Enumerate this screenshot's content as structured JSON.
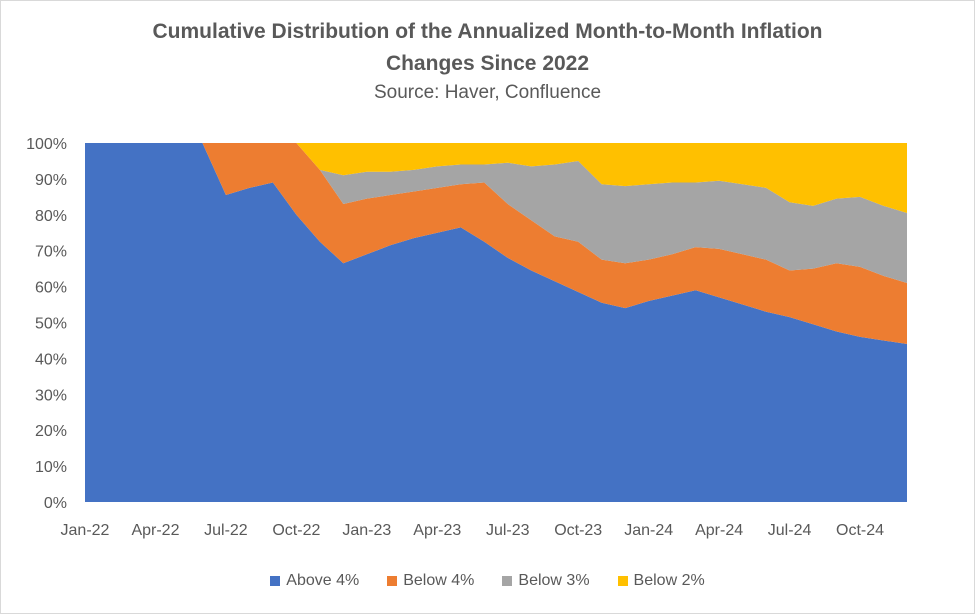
{
  "title_line1": "Cumulative Distribution of  the Annualized Month-to-Month Inflation",
  "title_line2": "Changes Since 2022",
  "subtitle": "Source: Haver, Confluence",
  "chart_data": {
    "type": "area",
    "stacked": true,
    "x": [
      "Jan-22",
      "Feb-22",
      "Mar-22",
      "Apr-22",
      "May-22",
      "Jun-22",
      "Jul-22",
      "Aug-22",
      "Sep-22",
      "Oct-22",
      "Nov-22",
      "Dec-22",
      "Jan-23",
      "Feb-23",
      "Mar-23",
      "Apr-23",
      "May-23",
      "Jun-23",
      "Jul-23",
      "Aug-23",
      "Sep-23",
      "Oct-23",
      "Nov-23",
      "Dec-23",
      "Jan-24",
      "Feb-24",
      "Mar-24",
      "Apr-24",
      "May-24",
      "Jun-24",
      "Jul-24",
      "Aug-24",
      "Sep-24",
      "Oct-24",
      "Nov-24",
      "Dec-24"
    ],
    "x_tick_labels": [
      "Jan-22",
      "Apr-22",
      "Jul-22",
      "Oct-22",
      "Jan-23",
      "Apr-23",
      "Jul-23",
      "Oct-23",
      "Jan-24",
      "Apr-24",
      "Jul-24",
      "Oct-24"
    ],
    "y_ticks": [
      "0%",
      "10%",
      "20%",
      "30%",
      "40%",
      "50%",
      "60%",
      "70%",
      "80%",
      "90%",
      "100%"
    ],
    "ylim": [
      0,
      100
    ],
    "legend_position": "bottom",
    "series": [
      {
        "name": "Above 4%",
        "color": "#4472c4",
        "values": [
          100,
          100,
          100,
          100,
          100,
          100,
          85.5,
          87.5,
          89,
          80,
          72.5,
          66.5,
          69,
          71.5,
          73.5,
          75,
          76.5,
          72.5,
          68,
          64.5,
          61.5,
          58.5,
          55.5,
          54,
          56,
          57.5,
          59,
          57,
          55,
          53,
          51.5,
          49.5,
          47.5,
          46,
          45,
          44
        ]
      },
      {
        "name": "Below 4%",
        "color": "#ed7d31",
        "values": [
          0,
          0,
          0,
          0,
          0,
          0,
          14.5,
          12.5,
          11,
          20,
          20,
          16.5,
          15.5,
          14,
          13,
          12.5,
          12,
          16.5,
          15,
          14,
          12.5,
          14,
          12,
          12.5,
          11.5,
          11.5,
          12,
          13.5,
          14,
          14.5,
          13,
          15.5,
          19,
          19.5,
          18,
          17
        ]
      },
      {
        "name": "Below 3%",
        "color": "#a5a5a5",
        "values": [
          0,
          0,
          0,
          0,
          0,
          0,
          0,
          0,
          0,
          0,
          0,
          8,
          7.5,
          6.5,
          6,
          6,
          5.5,
          5,
          11.5,
          15,
          20,
          22.5,
          21,
          21.5,
          21,
          20,
          18,
          19,
          19.5,
          20,
          19,
          17.5,
          18,
          19.5,
          19.5,
          19.5
        ]
      },
      {
        "name": "Below 2%",
        "color": "#ffc000",
        "values": [
          0,
          0,
          0,
          0,
          0,
          0,
          0,
          0,
          0,
          0,
          7.5,
          9,
          8,
          8,
          7.5,
          6.5,
          6,
          6,
          5.5,
          6.5,
          6,
          5,
          11.5,
          12,
          11.5,
          11,
          11,
          10.5,
          11.5,
          12.5,
          16.5,
          17.5,
          15.5,
          15,
          17.5,
          19.5
        ]
      }
    ]
  }
}
